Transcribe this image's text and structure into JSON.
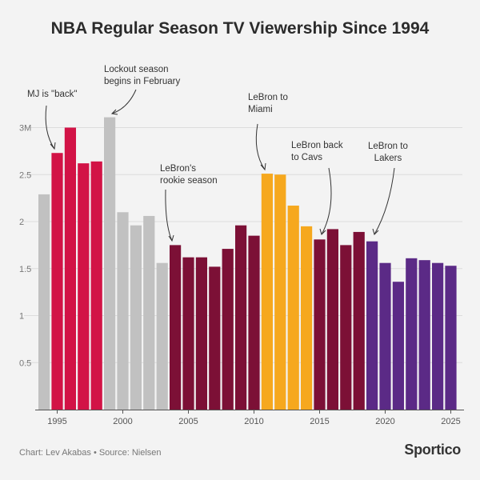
{
  "chart_data": {
    "type": "bar",
    "title": "NBA Regular Season TV Viewership Since 1994",
    "xlabel": "",
    "ylabel": "",
    "ylim": [
      0,
      3.3
    ],
    "y_ticks": [
      0.5,
      1,
      1.5,
      2,
      2.5,
      3
    ],
    "y_tick_labels": [
      "0.5",
      "1",
      "1.5",
      "2",
      "2.5",
      "3M"
    ],
    "x_ticks": [
      1995,
      2000,
      2005,
      2010,
      2015,
      2020,
      2025
    ],
    "x_tick_labels": [
      "1995",
      "2000",
      "2005",
      "2010",
      "2015",
      "2020",
      "2025"
    ],
    "grid": true,
    "colors": {
      "gray": "#c1c1c1",
      "red": "#d21346",
      "maroon": "#7c1036",
      "orange": "#f6a81e",
      "purple": "#5b2a86"
    },
    "bars": [
      {
        "year": 1994,
        "value": 2.29,
        "color": "gray"
      },
      {
        "year": 1995,
        "value": 2.73,
        "color": "red"
      },
      {
        "year": 1996,
        "value": 3.0,
        "color": "red"
      },
      {
        "year": 1997,
        "value": 2.62,
        "color": "red"
      },
      {
        "year": 1998,
        "value": 2.64,
        "color": "red"
      },
      {
        "year": 1999,
        "value": 3.11,
        "color": "gray"
      },
      {
        "year": 2000,
        "value": 2.1,
        "color": "gray"
      },
      {
        "year": 2001,
        "value": 1.96,
        "color": "gray"
      },
      {
        "year": 2002,
        "value": 2.06,
        "color": "gray"
      },
      {
        "year": 2003,
        "value": 1.56,
        "color": "gray"
      },
      {
        "year": 2004,
        "value": 1.75,
        "color": "maroon"
      },
      {
        "year": 2005,
        "value": 1.62,
        "color": "maroon"
      },
      {
        "year": 2006,
        "value": 1.62,
        "color": "maroon"
      },
      {
        "year": 2007,
        "value": 1.52,
        "color": "maroon"
      },
      {
        "year": 2008,
        "value": 1.71,
        "color": "maroon"
      },
      {
        "year": 2009,
        "value": 1.96,
        "color": "maroon"
      },
      {
        "year": 2010,
        "value": 1.85,
        "color": "maroon"
      },
      {
        "year": 2011,
        "value": 2.51,
        "color": "orange"
      },
      {
        "year": 2012,
        "value": 2.5,
        "color": "orange"
      },
      {
        "year": 2013,
        "value": 2.17,
        "color": "orange"
      },
      {
        "year": 2014,
        "value": 1.95,
        "color": "orange"
      },
      {
        "year": 2015,
        "value": 1.81,
        "color": "maroon"
      },
      {
        "year": 2016,
        "value": 1.92,
        "color": "maroon"
      },
      {
        "year": 2017,
        "value": 1.75,
        "color": "maroon"
      },
      {
        "year": 2018,
        "value": 1.89,
        "color": "maroon"
      },
      {
        "year": 2019,
        "value": 1.79,
        "color": "purple"
      },
      {
        "year": 2020,
        "value": 1.56,
        "color": "purple"
      },
      {
        "year": 2021,
        "value": 1.36,
        "color": "purple"
      },
      {
        "year": 2022,
        "value": 1.61,
        "color": "purple"
      },
      {
        "year": 2023,
        "value": 1.59,
        "color": "purple"
      },
      {
        "year": 2024,
        "value": 1.56,
        "color": "purple"
      },
      {
        "year": 2025,
        "value": 1.53,
        "color": "purple"
      }
    ],
    "annotations": [
      {
        "text": "MJ is \"back\"",
        "year": 1995
      },
      {
        "text": "Lockout season begins in February",
        "year": 1999
      },
      {
        "text": "LeBron's rookie season",
        "year": 2004
      },
      {
        "text": "LeBron to Miami",
        "year": 2011
      },
      {
        "text": "LeBron back to Cavs",
        "year": 2015
      },
      {
        "text": "LeBron to Lakers",
        "year": 2019
      }
    ]
  },
  "annotation_lines": {
    "mj": [
      "MJ is \"back\""
    ],
    "lockout": [
      "Lockout season",
      "begins in February"
    ],
    "rookie": [
      "LeBron's",
      "rookie season"
    ],
    "miami": [
      "LeBron to",
      "Miami"
    ],
    "cavs": [
      "LeBron back",
      "to Cavs"
    ],
    "lakers": [
      "LeBron to",
      "Lakers"
    ]
  },
  "footer": {
    "credit": "Chart: Lev Akabas • Source: Nielsen",
    "brand": "Sportico"
  }
}
